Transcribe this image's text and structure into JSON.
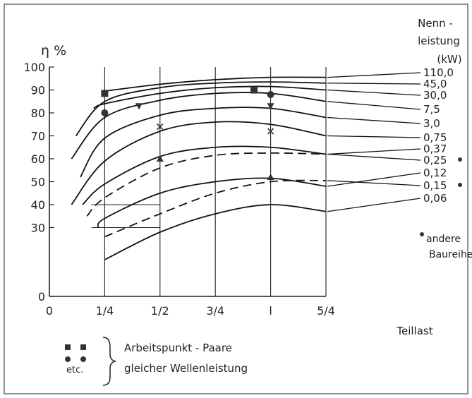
{
  "chart_data": {
    "type": "line",
    "ylabel": "η %",
    "xlabel": "Teillast",
    "xlim": [
      0,
      1.25
    ],
    "ylim": [
      0,
      100
    ],
    "grid": false,
    "x_ticks": [
      {
        "value": 0,
        "label": "0"
      },
      {
        "value": 0.25,
        "label": "1/4"
      },
      {
        "value": 0.5,
        "label": "1/2"
      },
      {
        "value": 0.75,
        "label": "3/4"
      },
      {
        "value": 1,
        "label": "l"
      },
      {
        "value": 1.25,
        "label": "5/4"
      }
    ],
    "y_ticks": [
      {
        "value": 0,
        "label": "0"
      },
      {
        "value": 30,
        "label": "30"
      },
      {
        "value": 40,
        "label": "40"
      },
      {
        "value": 50,
        "label": "50"
      },
      {
        "value": 60,
        "label": "60"
      },
      {
        "value": 70,
        "label": "70"
      },
      {
        "value": 80,
        "label": "80"
      },
      {
        "value": 90,
        "label": "90"
      },
      {
        "value": 100,
        "label": "100"
      }
    ],
    "legend_title": [
      "Nenn -",
      "leistung",
      "(kW)"
    ],
    "series": [
      {
        "name": "110,0",
        "dash": false,
        "marked": false,
        "x": [
          0.25,
          0.5,
          0.75,
          1.0,
          1.25
        ],
        "y": [
          89.5,
          92.5,
          94.5,
          95.5,
          95.5
        ]
      },
      {
        "name": "45,0",
        "dash": false,
        "marked": false,
        "x": [
          0.12,
          0.25,
          0.5,
          0.75,
          1.0,
          1.25
        ],
        "y": [
          70,
          85,
          91,
          93,
          93.5,
          93
        ]
      },
      {
        "name": "30,0",
        "dash": false,
        "marked": false,
        "x": [
          0.2,
          0.25,
          0.5,
          0.75,
          1.0,
          1.25
        ],
        "y": [
          82,
          84,
          88.5,
          91,
          91.5,
          90
        ]
      },
      {
        "name": "7,5",
        "dash": false,
        "marked": false,
        "x": [
          0.1,
          0.25,
          0.5,
          0.75,
          1.0,
          1.25
        ],
        "y": [
          60,
          78,
          85.5,
          88.5,
          88.5,
          85
        ]
      },
      {
        "name": "3,0",
        "dash": false,
        "marked": false,
        "x": [
          0.14,
          0.25,
          0.5,
          0.75,
          1.0,
          1.25
        ],
        "y": [
          52,
          69,
          79,
          82,
          82,
          78
        ]
      },
      {
        "name": "0,75",
        "dash": false,
        "marked": false,
        "x": [
          0.1,
          0.25,
          0.5,
          0.75,
          1.0,
          1.25
        ],
        "y": [
          40,
          59,
          72,
          76,
          75,
          70
        ]
      },
      {
        "name": "0,37",
        "dash": false,
        "marked": false,
        "x": [
          0.15,
          0.25,
          0.5,
          0.75,
          1.0,
          1.25
        ],
        "y": [
          40,
          49,
          61,
          65,
          65,
          62
        ]
      },
      {
        "name": "0,25",
        "dash": true,
        "marked": true,
        "x": [
          0.17,
          0.25,
          0.5,
          0.75,
          1.0,
          1.25
        ],
        "y": [
          35,
          43,
          56,
          61.5,
          62.5,
          62
        ]
      },
      {
        "name": "0,12",
        "dash": false,
        "marked": false,
        "x": [
          0.22,
          0.25,
          0.5,
          0.75,
          1.0,
          1.25
        ],
        "y": [
          30,
          34,
          45,
          50,
          51.5,
          48
        ]
      },
      {
        "name": "0,15",
        "dash": true,
        "marked": true,
        "x": [
          0.25,
          0.5,
          0.75,
          1.0,
          1.25
        ],
        "y": [
          26,
          36,
          45,
          50,
          50.5
        ]
      },
      {
        "name": "0,06",
        "dash": false,
        "marked": false,
        "x": [
          0.25,
          0.5,
          0.75,
          1.0,
          1.25
        ],
        "y": [
          16,
          28,
          36,
          40,
          37
        ]
      }
    ],
    "markers": [
      {
        "shape": "square",
        "x": 0.25,
        "y": 88.5
      },
      {
        "shape": "square",
        "x": 0.925,
        "y": 90
      },
      {
        "shape": "circle",
        "x": 0.25,
        "y": 80
      },
      {
        "shape": "circle",
        "x": 1.0,
        "y": 88
      },
      {
        "shape": "triangle-down",
        "x": 0.405,
        "y": 83
      },
      {
        "shape": "triangle-down",
        "x": 1.0,
        "y": 83
      },
      {
        "shape": "x",
        "x": 0.5,
        "y": 74
      },
      {
        "shape": "x",
        "x": 1.0,
        "y": 72
      },
      {
        "shape": "triangle-up",
        "x": 0.5,
        "y": 60
      },
      {
        "shape": "triangle-up",
        "x": 1.0,
        "y": 52
      }
    ],
    "extra_marks": [
      {
        "shape": "line",
        "x": [
          0.19,
          0.5
        ],
        "y": [
          40,
          40
        ]
      },
      {
        "shape": "line",
        "x": [
          0.19,
          0.5
        ],
        "y": [
          30,
          30
        ]
      }
    ],
    "annotation_marker_note": "andere Baureihe",
    "bottom_legend": {
      "text_line1": "Arbeitspunkt - Paare",
      "text_line2": "gleicher Wellenleistung",
      "etc_label": "etc."
    }
  }
}
